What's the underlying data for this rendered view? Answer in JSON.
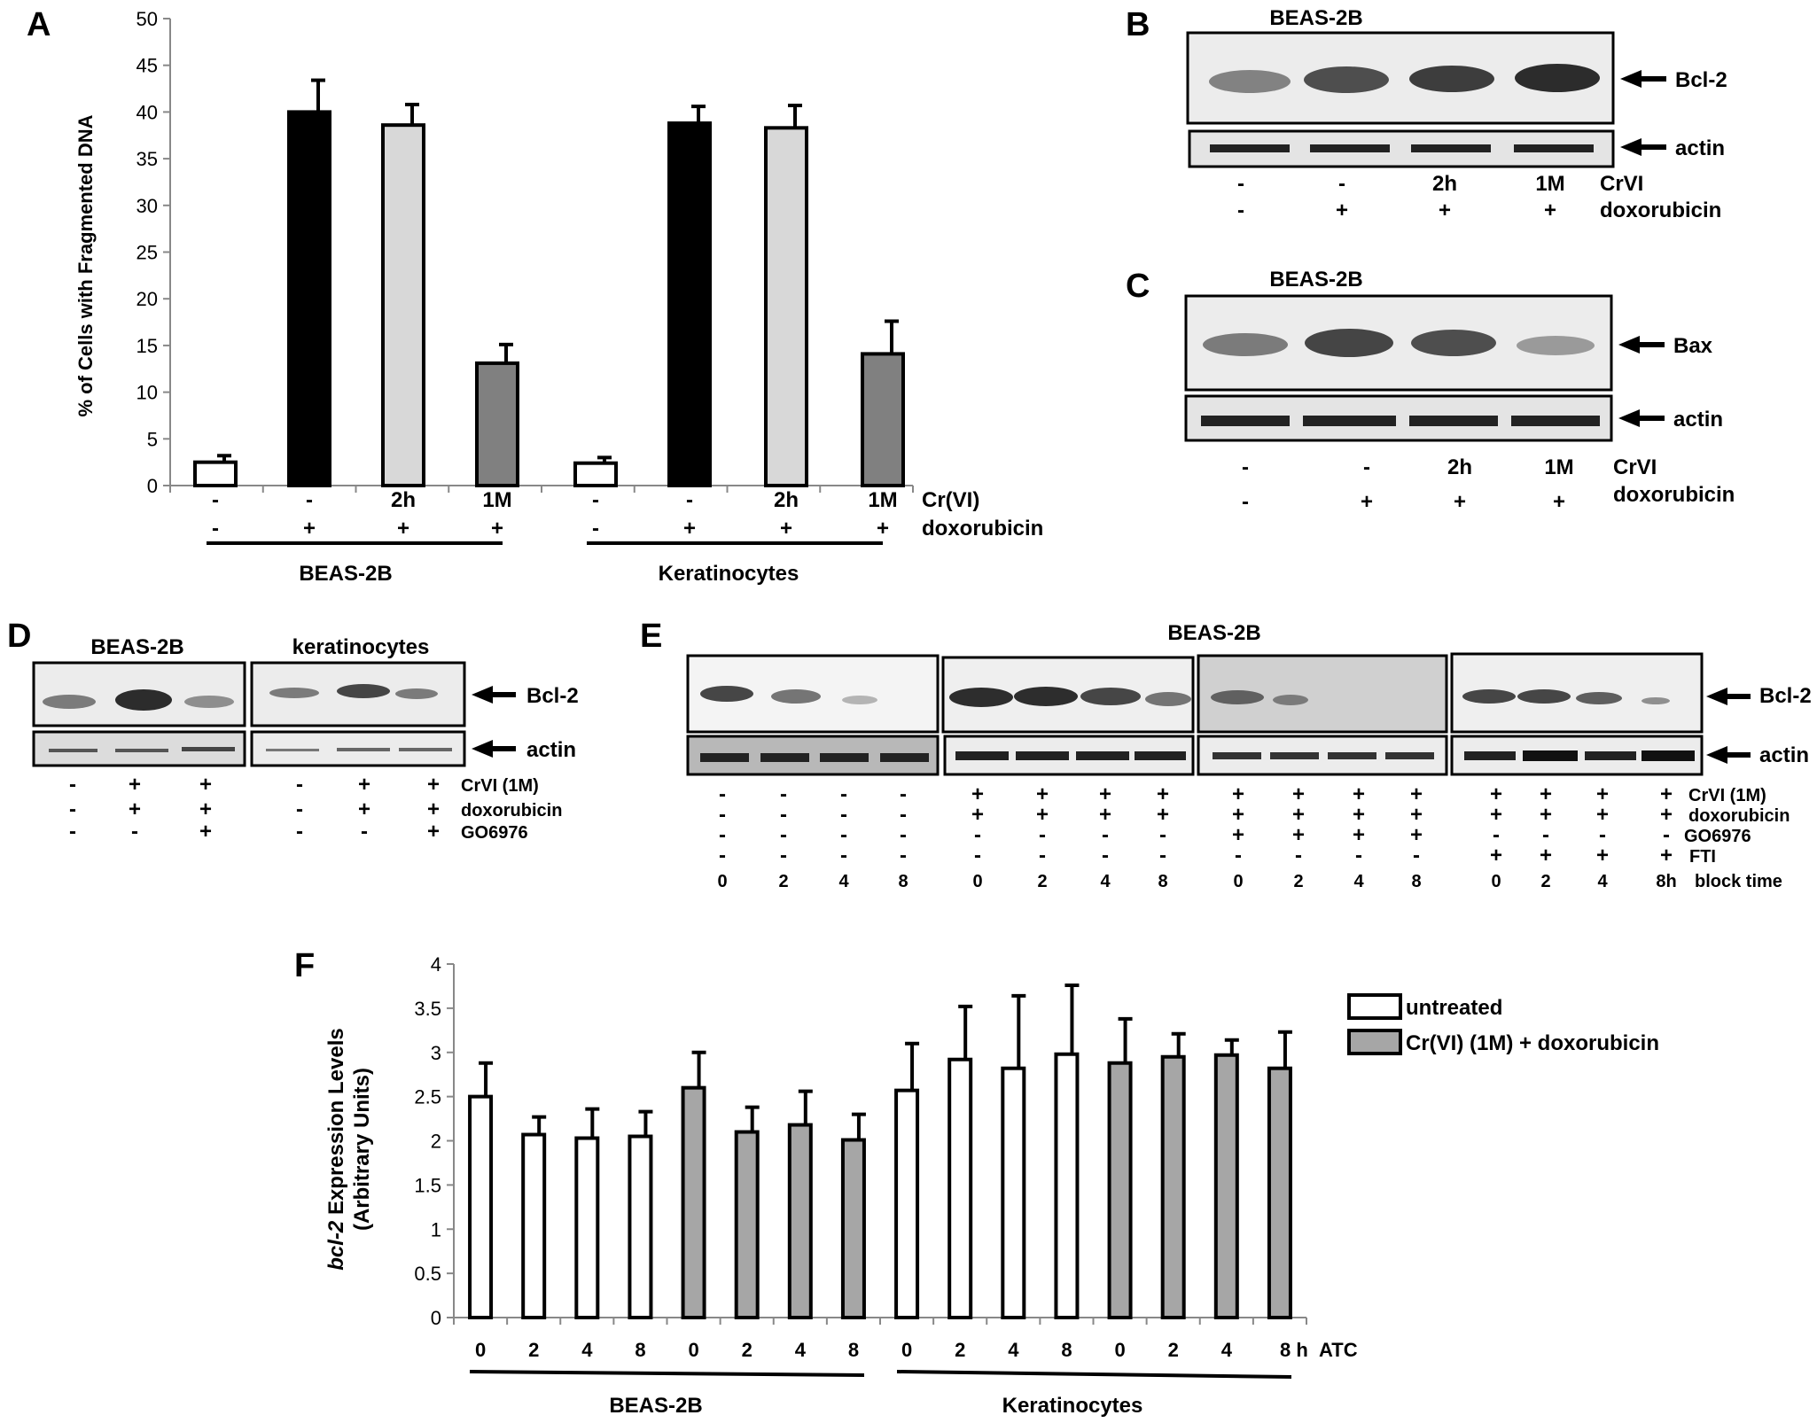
{
  "colors": {
    "black": "#000000",
    "light_gray": "#d8d8d8",
    "dark_gray": "#808080",
    "white": "#ffffff",
    "bar_gray": "#a6a6a6",
    "blot_bg": "#e6e6e6",
    "band": "#2a2a2a"
  },
  "panel_labels": {
    "a": "A",
    "b": "B",
    "c": "C",
    "d": "D",
    "e": "E",
    "f": "F"
  },
  "chart_data": [
    {
      "id": "A",
      "type": "bar",
      "ylabel": "% of Cells with Fragmented DNA",
      "ylim": [
        0,
        50
      ],
      "yticks": [
        0,
        5,
        10,
        15,
        20,
        25,
        30,
        35,
        40,
        45,
        50
      ],
      "bars": [
        {
          "group": "BEAS-2B",
          "crvi": "-",
          "doxorubicin": "-",
          "value": 2.5,
          "error": 0.7,
          "fill": "#ffffff"
        },
        {
          "group": "BEAS-2B",
          "crvi": "-",
          "doxorubicin": "+",
          "value": 40.0,
          "error": 3.4,
          "fill": "#000000"
        },
        {
          "group": "BEAS-2B",
          "crvi": "2h",
          "doxorubicin": "+",
          "value": 38.6,
          "error": 2.2,
          "fill": "#d8d8d8"
        },
        {
          "group": "BEAS-2B",
          "crvi": "1M",
          "doxorubicin": "+",
          "value": 13.1,
          "error": 2.0,
          "fill": "#808080"
        },
        {
          "group": "Keratinocytes",
          "crvi": "-",
          "doxorubicin": "-",
          "value": 2.4,
          "error": 0.6,
          "fill": "#ffffff"
        },
        {
          "group": "Keratinocytes",
          "crvi": "-",
          "doxorubicin": "+",
          "value": 38.8,
          "error": 1.8,
          "fill": "#000000"
        },
        {
          "group": "Keratinocytes",
          "crvi": "2h",
          "doxorubicin": "+",
          "value": 38.3,
          "error": 2.4,
          "fill": "#d8d8d8"
        },
        {
          "group": "Keratinocytes",
          "crvi": "1M",
          "doxorubicin": "+",
          "value": 14.1,
          "error": 3.5,
          "fill": "#808080"
        }
      ],
      "row_labels": {
        "crvi": "Cr(VI)",
        "doxorubicin": "doxorubicin"
      },
      "groups": [
        "BEAS-2B",
        "Keratinocytes"
      ]
    },
    {
      "id": "F",
      "type": "bar",
      "ylabel_italic": "bcl-2",
      "ylabel_rest": " Expression Levels",
      "ylabel_line2": "(Arbitrary Units)",
      "ylim": [
        0,
        4
      ],
      "yticks": [
        "0",
        "0.5",
        "1",
        "1.5",
        "2",
        "2.5",
        "3",
        "3.5",
        "4"
      ],
      "legend": [
        "untreated",
        "Cr(VI) (1M) + doxorubicin"
      ],
      "categories": [
        "0",
        "2",
        "4",
        "8",
        "0",
        "2",
        "4",
        "8",
        "0",
        "2",
        "4",
        "8",
        "0",
        "2",
        "4",
        "8 h"
      ],
      "x_suffix_label": "ATC",
      "bars": [
        {
          "group": "BEAS-2B",
          "treatment": "untreated",
          "value": 2.5,
          "error": 0.38
        },
        {
          "group": "BEAS-2B",
          "treatment": "untreated",
          "value": 2.07,
          "error": 0.2
        },
        {
          "group": "BEAS-2B",
          "treatment": "untreated",
          "value": 2.03,
          "error": 0.33
        },
        {
          "group": "BEAS-2B",
          "treatment": "untreated",
          "value": 2.05,
          "error": 0.28
        },
        {
          "group": "BEAS-2B",
          "treatment": "Cr(VI) (1M) + doxorubicin",
          "value": 2.6,
          "error": 0.4
        },
        {
          "group": "BEAS-2B",
          "treatment": "Cr(VI) (1M) + doxorubicin",
          "value": 2.1,
          "error": 0.28
        },
        {
          "group": "BEAS-2B",
          "treatment": "Cr(VI) (1M) + doxorubicin",
          "value": 2.18,
          "error": 0.38
        },
        {
          "group": "BEAS-2B",
          "treatment": "Cr(VI) (1M) + doxorubicin",
          "value": 2.01,
          "error": 0.29
        },
        {
          "group": "Keratinocytes",
          "treatment": "untreated",
          "value": 2.57,
          "error": 0.53
        },
        {
          "group": "Keratinocytes",
          "treatment": "untreated",
          "value": 2.92,
          "error": 0.6
        },
        {
          "group": "Keratinocytes",
          "treatment": "untreated",
          "value": 2.82,
          "error": 0.82
        },
        {
          "group": "Keratinocytes",
          "treatment": "untreated",
          "value": 2.98,
          "error": 0.78
        },
        {
          "group": "Keratinocytes",
          "treatment": "Cr(VI) (1M) + doxorubicin",
          "value": 2.88,
          "error": 0.5
        },
        {
          "group": "Keratinocytes",
          "treatment": "Cr(VI) (1M) + doxorubicin",
          "value": 2.95,
          "error": 0.26
        },
        {
          "group": "Keratinocytes",
          "treatment": "Cr(VI) (1M) + doxorubicin",
          "value": 2.97,
          "error": 0.17
        },
        {
          "group": "Keratinocytes",
          "treatment": "Cr(VI) (1M) + doxorubicin",
          "value": 2.82,
          "error": 0.41
        }
      ],
      "groups": [
        "BEAS-2B",
        "Keratinocytes"
      ]
    }
  ],
  "panel_b": {
    "title": "BEAS-2B",
    "bands": [
      "Bcl-2",
      "actin"
    ],
    "crvi": [
      "-",
      "-",
      "2h",
      "1M"
    ],
    "crvi_label": "CrVI",
    "doxorubicin": [
      "-",
      "+",
      "+",
      "+"
    ],
    "doxorubicin_label": "doxorubicin"
  },
  "panel_c": {
    "title": "BEAS-2B",
    "bands": [
      "Bax",
      "actin"
    ],
    "crvi": [
      "-",
      "-",
      "2h",
      "1M"
    ],
    "crvi_label": "CrVI",
    "doxorubicin": [
      "-",
      "+",
      "+",
      "+"
    ],
    "doxorubicin_label": "doxorubicin"
  },
  "panel_d": {
    "titles": [
      "BEAS-2B",
      "keratinocytes"
    ],
    "bands": [
      "Bcl-2",
      "actin"
    ],
    "rows": [
      {
        "label": "CrVI (1M)",
        "values": [
          "-",
          "+",
          "+",
          "-",
          "+",
          "+"
        ]
      },
      {
        "label": "doxorubicin",
        "values": [
          "-",
          "+",
          "+",
          "-",
          "+",
          "+"
        ]
      },
      {
        "label": "GO6976",
        "values": [
          "-",
          "-",
          "+",
          "-",
          "-",
          "+"
        ]
      }
    ]
  },
  "panel_e": {
    "title": "BEAS-2B",
    "bands": [
      "Bcl-2",
      "actin"
    ],
    "rows": [
      {
        "label": "CrVI (1M)",
        "values": [
          "-",
          "-",
          "-",
          "-",
          "+",
          "+",
          "+",
          "+",
          "+",
          "+",
          "+",
          "+",
          "+",
          "+",
          "+",
          "+"
        ]
      },
      {
        "label": "doxorubicin",
        "values": [
          "-",
          "-",
          "-",
          "-",
          "+",
          "+",
          "+",
          "+",
          "+",
          "+",
          "+",
          "+",
          "+",
          "+",
          "+",
          "+"
        ]
      },
      {
        "label": "GO6976",
        "values": [
          "-",
          "-",
          "-",
          "-",
          "-",
          "-",
          "-",
          "-",
          "+",
          "+",
          "+",
          "+",
          "-",
          "-",
          "-",
          "-"
        ]
      },
      {
        "label": "FTI",
        "values": [
          "-",
          "-",
          "-",
          "-",
          "-",
          "-",
          "-",
          "-",
          "-",
          "-",
          "-",
          "-",
          "+",
          "+",
          "+",
          "+"
        ]
      },
      {
        "label": "block time",
        "values": [
          "0",
          "2",
          "4",
          "8",
          "0",
          "2",
          "4",
          "8",
          "0",
          "2",
          "4",
          "8",
          "0",
          "2",
          "4",
          "8h"
        ]
      }
    ]
  }
}
